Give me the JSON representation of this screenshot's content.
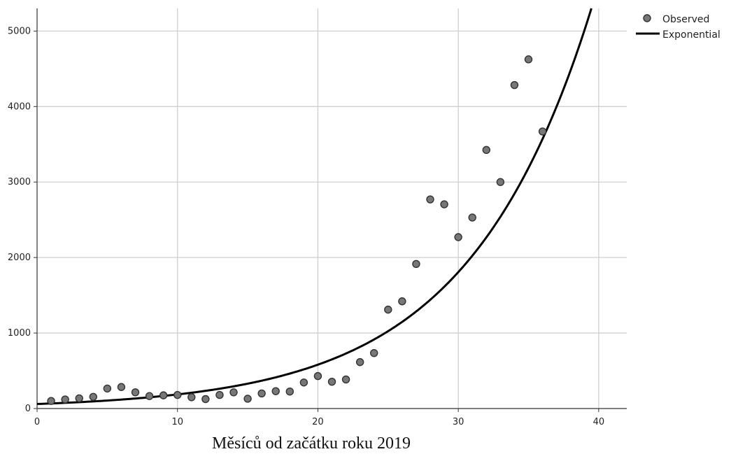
{
  "chart_data": {
    "type": "scatter",
    "xlabel": "Měsíců od začátku roku 2019",
    "ylabel": "",
    "xlim": [
      0,
      42
    ],
    "ylim": [
      0,
      5300
    ],
    "x_ticks": [
      0,
      10,
      20,
      30,
      40
    ],
    "y_ticks": [
      0,
      1000,
      2000,
      3000,
      4000,
      5000
    ],
    "grid": true,
    "legend": "top-right",
    "series": [
      {
        "name": "Observed",
        "kind": "scatter",
        "color": "#777777",
        "x": [
          1,
          2,
          3,
          4,
          5,
          6,
          7,
          8,
          9,
          10,
          11,
          12,
          13,
          14,
          15,
          16,
          17,
          18,
          19,
          20,
          21,
          22,
          23,
          24,
          25,
          26,
          27,
          28,
          29,
          30,
          31,
          32,
          33,
          34,
          35,
          36
        ],
        "y": [
          100,
          120,
          135,
          155,
          265,
          285,
          215,
          165,
          175,
          180,
          150,
          125,
          180,
          215,
          130,
          200,
          230,
          225,
          345,
          430,
          355,
          385,
          615,
          735,
          1310,
          1420,
          1915,
          2770,
          2705,
          2270,
          2530,
          3425,
          3000,
          4285,
          4625,
          3670
        ]
      },
      {
        "name": "Exponential",
        "kind": "line",
        "color": "#000000",
        "model": {
          "a": 60,
          "b": 0.1135
        }
      }
    ]
  }
}
